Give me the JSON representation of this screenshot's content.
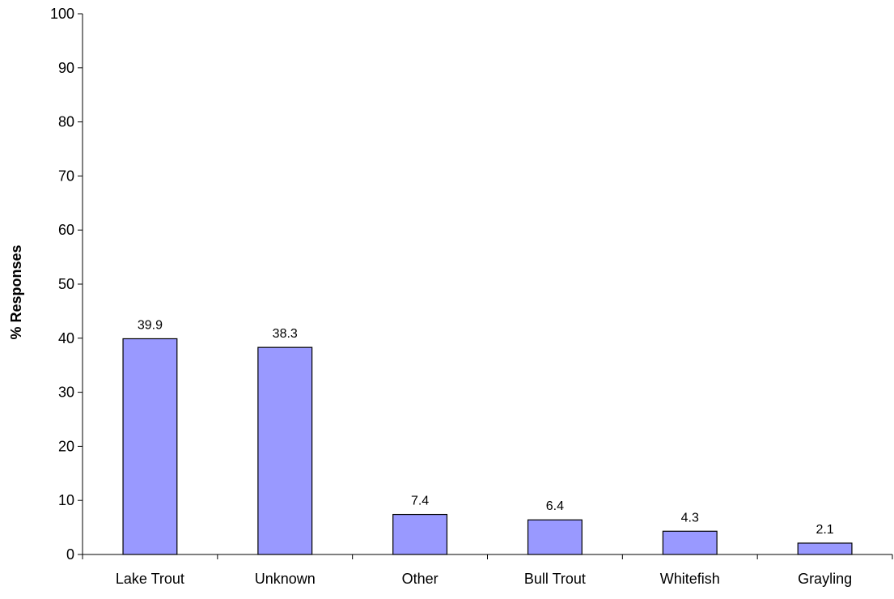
{
  "chart_data": {
    "type": "bar",
    "title": "",
    "xlabel": "",
    "ylabel": "% Responses",
    "categories": [
      "Lake Trout",
      "Unknown",
      "Other",
      "Bull Trout",
      "Whitefish",
      "Grayling"
    ],
    "values": [
      39.9,
      38.3,
      7.4,
      6.4,
      4.3,
      2.1
    ],
    "data_labels": [
      "39.9",
      "38.3",
      "7.4",
      "6.4",
      "4.3",
      "2.1"
    ],
    "ylim": [
      0,
      100
    ],
    "yticks": [
      "0",
      "10",
      "20",
      "30",
      "40",
      "50",
      "60",
      "70",
      "80",
      "90",
      "100"
    ],
    "grid": false,
    "legend": "none",
    "bar_color": "#9999ff",
    "bar_border_color": "#000000"
  }
}
